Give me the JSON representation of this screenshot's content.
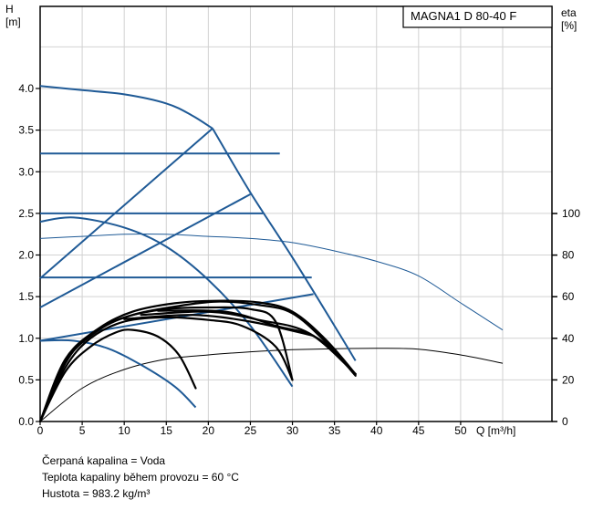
{
  "chart_data": {
    "type": "line",
    "model_label": "MAGNA1 D 80-40 F",
    "y_left": {
      "label_line1": "H",
      "label_line2": "[m]",
      "min": 0,
      "max": 4.0,
      "ticks": [
        "0.0",
        "0.5",
        "1.0",
        "1.5",
        "2.0",
        "2.5",
        "3.0",
        "3.5",
        "4.0"
      ]
    },
    "y_right": {
      "label_line1": "eta",
      "label_line2": "[%]",
      "min": 0,
      "max": 100,
      "ticks": [
        "0",
        "20",
        "40",
        "60",
        "80",
        "100"
      ]
    },
    "x": {
      "label": "Q [m³/h]",
      "min": 0,
      "max": 60,
      "ticks": [
        "0",
        "5",
        "10",
        "15",
        "20",
        "25",
        "30",
        "35",
        "40",
        "45",
        "50"
      ]
    },
    "grid": true,
    "colors": {
      "head": "#1f5a96",
      "power": "#000000",
      "eta": "#1f5a96"
    },
    "head_curves": [
      {
        "points": [
          [
            0,
            4.03
          ],
          [
            5,
            3.98
          ],
          [
            10,
            3.93
          ],
          [
            15,
            3.82
          ],
          [
            18,
            3.68
          ],
          [
            20.5,
            3.52
          ]
        ]
      },
      {
        "points": [
          [
            20.5,
            3.52
          ],
          [
            25,
            2.75
          ],
          [
            30,
            1.97
          ],
          [
            35,
            1.15
          ],
          [
            37.5,
            0.73
          ]
        ]
      },
      {
        "points": [
          [
            0,
            3.22
          ],
          [
            28.5,
            3.22
          ]
        ]
      },
      {
        "points": [
          [
            0,
            2.5
          ],
          [
            26.5,
            2.5
          ]
        ]
      },
      {
        "points": [
          [
            0,
            1.73
          ],
          [
            32.3,
            1.73
          ]
        ]
      },
      {
        "points": [
          [
            0,
            1.72
          ],
          [
            20.5,
            3.52
          ]
        ]
      },
      {
        "points": [
          [
            0,
            1.37
          ],
          [
            25,
            2.73
          ]
        ]
      },
      {
        "points": [
          [
            0,
            0.97
          ],
          [
            32.5,
            1.53
          ]
        ]
      },
      {
        "points": [
          [
            0,
            2.4
          ],
          [
            4,
            2.45
          ],
          [
            10,
            2.33
          ],
          [
            15,
            2.1
          ],
          [
            20,
            1.7
          ],
          [
            25,
            1.15
          ],
          [
            30,
            0.42
          ]
        ]
      },
      {
        "points": [
          [
            0,
            0.97
          ],
          [
            4,
            0.97
          ],
          [
            8,
            0.88
          ],
          [
            12,
            0.68
          ],
          [
            16,
            0.42
          ],
          [
            18.5,
            0.17
          ]
        ]
      }
    ],
    "eta_curves": [
      {
        "points": [
          [
            0,
            88
          ],
          [
            5,
            89
          ],
          [
            10,
            90
          ],
          [
            15,
            90
          ],
          [
            20,
            89
          ],
          [
            25,
            88
          ],
          [
            30,
            86
          ],
          [
            35,
            82
          ],
          [
            40,
            77
          ],
          [
            45,
            70
          ],
          [
            50,
            57
          ],
          [
            55,
            44
          ]
        ]
      },
      {
        "points": [
          [
            0,
            0
          ],
          [
            5,
            16
          ],
          [
            10,
            25
          ],
          [
            15,
            30
          ],
          [
            20,
            32
          ],
          [
            25,
            33.5
          ],
          [
            30,
            34.5
          ],
          [
            35,
            35
          ],
          [
            40,
            35.2
          ],
          [
            45,
            34.8
          ],
          [
            50,
            32
          ],
          [
            55,
            28
          ]
        ]
      }
    ],
    "power_curves": [
      {
        "points": [
          [
            0,
            0
          ],
          [
            3,
            0.6
          ],
          [
            6,
            0.9
          ],
          [
            9,
            1.07
          ],
          [
            11,
            1.1
          ],
          [
            14,
            1.02
          ],
          [
            16.5,
            0.8
          ],
          [
            18.5,
            0.4
          ]
        ]
      },
      {
        "points": [
          [
            0,
            0
          ],
          [
            3,
            0.65
          ],
          [
            6,
            1.0
          ],
          [
            10,
            1.2
          ],
          [
            15,
            1.25
          ],
          [
            20,
            1.22
          ],
          [
            24,
            1.15
          ],
          [
            28,
            0.9
          ],
          [
            30,
            0.5
          ]
        ]
      },
      {
        "points": [
          [
            0,
            0
          ],
          [
            3,
            0.7
          ],
          [
            6,
            1.05
          ],
          [
            10,
            1.25
          ],
          [
            15,
            1.35
          ],
          [
            20,
            1.37
          ],
          [
            25,
            1.35
          ],
          [
            28,
            1.2
          ],
          [
            30,
            0.5
          ]
        ]
      },
      {
        "points": [
          [
            0,
            0
          ],
          [
            3,
            0.72
          ],
          [
            7,
            1.1
          ],
          [
            11,
            1.28
          ],
          [
            16,
            1.38
          ],
          [
            21,
            1.44
          ],
          [
            26,
            1.4
          ],
          [
            30,
            1.3
          ],
          [
            34,
            0.95
          ],
          [
            37.5,
            0.55
          ]
        ]
      },
      {
        "points": [
          [
            0,
            0
          ],
          [
            3,
            0.75
          ],
          [
            7,
            1.12
          ],
          [
            11,
            1.32
          ],
          [
            16,
            1.42
          ],
          [
            21,
            1.45
          ],
          [
            26,
            1.43
          ],
          [
            30,
            1.32
          ],
          [
            34,
            0.98
          ],
          [
            37.5,
            0.57
          ]
        ]
      },
      {
        "points": [
          [
            10,
            1.23
          ],
          [
            18,
            1.28
          ],
          [
            25,
            1.2
          ],
          [
            32.5,
            1.03
          ]
        ]
      },
      {
        "points": [
          [
            12,
            1.28
          ],
          [
            20,
            1.32
          ],
          [
            26,
            1.22
          ],
          [
            32,
            1.06
          ],
          [
            37.5,
            0.57
          ]
        ]
      },
      {
        "points": [
          [
            14,
            1.33
          ],
          [
            22,
            1.32
          ],
          [
            28,
            1.15
          ],
          [
            33,
            1.0
          ],
          [
            37.5,
            0.57
          ]
        ]
      }
    ]
  },
  "notes": {
    "line1": "Čerpaná kapalina = Voda",
    "line2": "Teplota kapaliny během provozu = 60 °C",
    "line3": "Hustota = 983.2 kg/m³"
  }
}
